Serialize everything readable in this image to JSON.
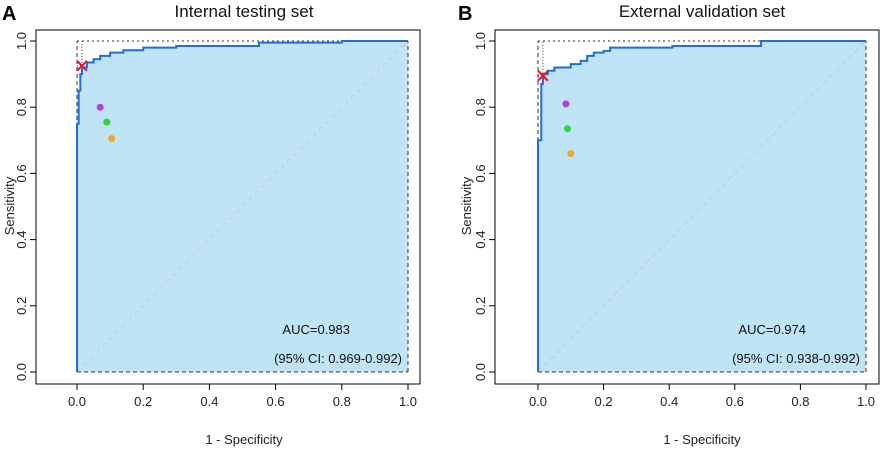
{
  "chart_data": [
    {
      "type": "line",
      "panel_label": "A",
      "title": "Internal testing set",
      "xlabel": "1 - Specificity",
      "ylabel": "Sensitivity",
      "xlim": [
        0,
        1
      ],
      "ylim": [
        0,
        1
      ],
      "xticks": [
        "0.0",
        "0.2",
        "0.4",
        "0.6",
        "0.8",
        "1.0"
      ],
      "yticks": [
        "0.0",
        "0.2",
        "0.4",
        "0.6",
        "0.8",
        "1.0"
      ],
      "grid": false,
      "auc_text": "AUC=0.983",
      "ci_text": "(95% CI: 0.969-0.992)",
      "fill_color": "#bfe3f7",
      "line_color": "#1f6fd6",
      "roc": [
        [
          0,
          0
        ],
        [
          0,
          0.75
        ],
        [
          0.005,
          0.75
        ],
        [
          0.005,
          0.85
        ],
        [
          0.01,
          0.85
        ],
        [
          0.01,
          0.9
        ],
        [
          0.015,
          0.9
        ],
        [
          0.015,
          0.92
        ],
        [
          0.03,
          0.92
        ],
        [
          0.03,
          0.935
        ],
        [
          0.05,
          0.935
        ],
        [
          0.05,
          0.945
        ],
        [
          0.07,
          0.945
        ],
        [
          0.07,
          0.955
        ],
        [
          0.1,
          0.955
        ],
        [
          0.1,
          0.965
        ],
        [
          0.14,
          0.965
        ],
        [
          0.14,
          0.972
        ],
        [
          0.2,
          0.972
        ],
        [
          0.2,
          0.98
        ],
        [
          0.3,
          0.98
        ],
        [
          0.3,
          0.985
        ],
        [
          0.55,
          0.985
        ],
        [
          0.55,
          0.995
        ],
        [
          0.8,
          0.995
        ],
        [
          0.8,
          1.0
        ],
        [
          1,
          1
        ]
      ],
      "cutoff": {
        "x": 0.015,
        "y": 0.925,
        "color": "#e8142a"
      },
      "points": [
        {
          "x": 0.07,
          "y": 0.8,
          "color": "#b03fe6"
        },
        {
          "x": 0.09,
          "y": 0.755,
          "color": "#2fd63a"
        },
        {
          "x": 0.105,
          "y": 0.705,
          "color": "#f5a623"
        }
      ]
    },
    {
      "type": "line",
      "panel_label": "B",
      "title": "External validation set",
      "xlabel": "1 - Specificity",
      "ylabel": "Sensitivity",
      "xlim": [
        0,
        1
      ],
      "ylim": [
        0,
        1
      ],
      "xticks": [
        "0.0",
        "0.2",
        "0.4",
        "0.6",
        "0.8",
        "1.0"
      ],
      "yticks": [
        "0.0",
        "0.2",
        "0.4",
        "0.6",
        "0.8",
        "1.0"
      ],
      "grid": false,
      "auc_text": "AUC=0.974",
      "ci_text": "(95% CI: 0.938-0.992)",
      "fill_color": "#bfe3f7",
      "line_color": "#1f6fd6",
      "roc": [
        [
          0,
          0
        ],
        [
          0,
          0.7
        ],
        [
          0.01,
          0.7
        ],
        [
          0.01,
          0.87
        ],
        [
          0.015,
          0.87
        ],
        [
          0.015,
          0.9
        ],
        [
          0.03,
          0.9
        ],
        [
          0.03,
          0.91
        ],
        [
          0.05,
          0.91
        ],
        [
          0.05,
          0.92
        ],
        [
          0.1,
          0.92
        ],
        [
          0.1,
          0.93
        ],
        [
          0.13,
          0.93
        ],
        [
          0.13,
          0.94
        ],
        [
          0.15,
          0.94
        ],
        [
          0.15,
          0.955
        ],
        [
          0.17,
          0.955
        ],
        [
          0.17,
          0.965
        ],
        [
          0.2,
          0.965
        ],
        [
          0.2,
          0.97
        ],
        [
          0.22,
          0.97
        ],
        [
          0.22,
          0.98
        ],
        [
          0.41,
          0.98
        ],
        [
          0.41,
          0.985
        ],
        [
          0.68,
          0.985
        ],
        [
          0.68,
          1.0
        ],
        [
          1,
          1
        ]
      ],
      "cutoff": {
        "x": 0.015,
        "y": 0.895,
        "color": "#e8142a"
      },
      "points": [
        {
          "x": 0.085,
          "y": 0.81,
          "color": "#b03fe6"
        },
        {
          "x": 0.09,
          "y": 0.735,
          "color": "#2fd63a"
        },
        {
          "x": 0.1,
          "y": 0.66,
          "color": "#f5a623"
        }
      ]
    }
  ]
}
